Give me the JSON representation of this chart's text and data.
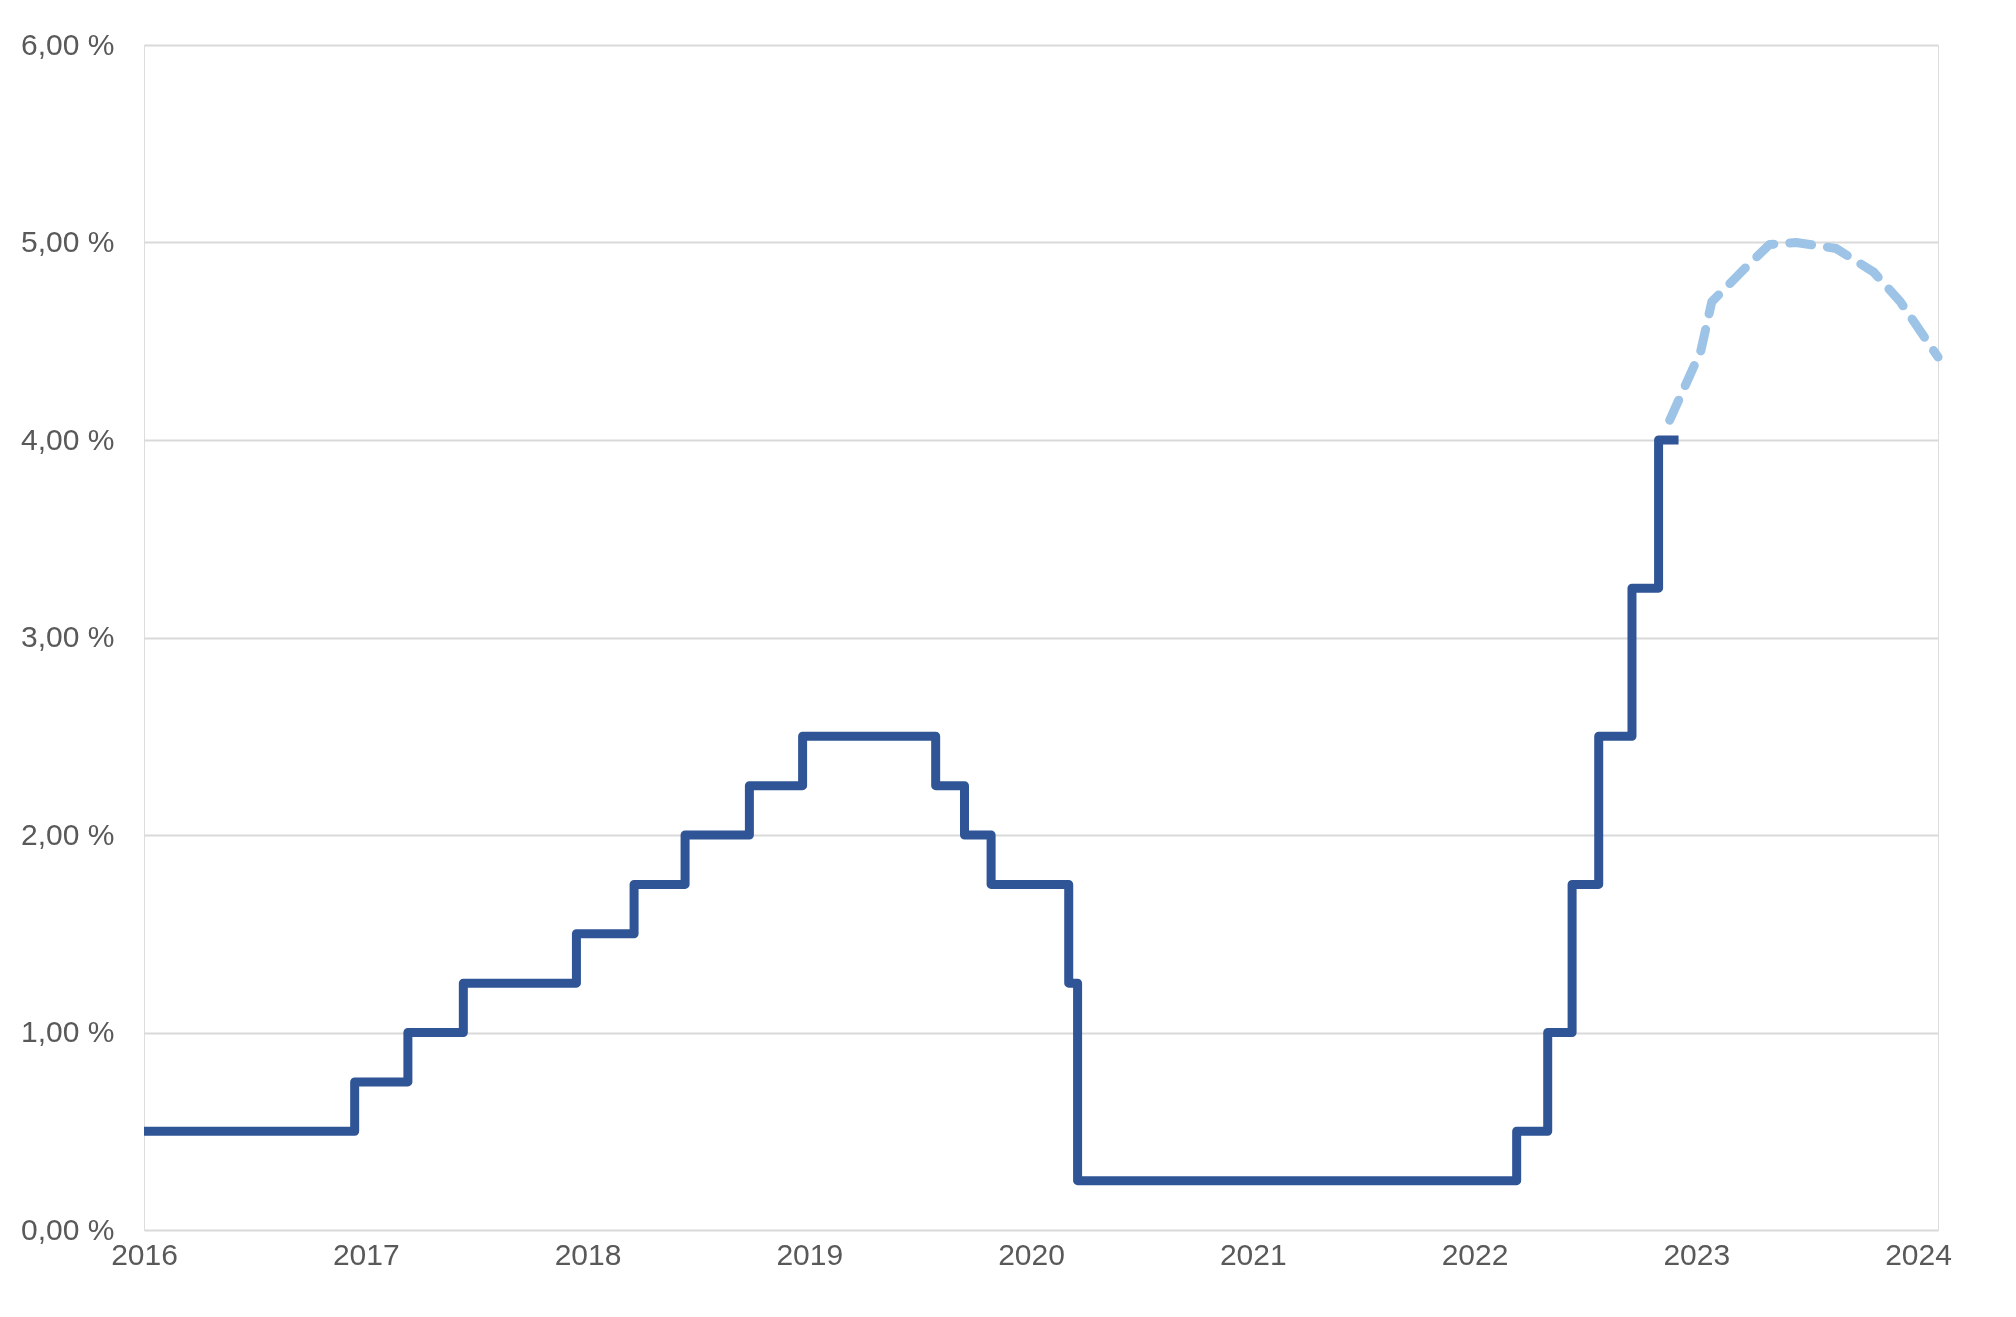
{
  "chart_data": {
    "type": "step",
    "xlim": [
      2016,
      2024.09
    ],
    "xticks": [
      2016,
      2017,
      2018,
      2019,
      2020,
      2021,
      2022,
      2023,
      2024
    ],
    "ylim": [
      0,
      6
    ],
    "yticks": [
      {
        "value": 0,
        "label": "0,00 %"
      },
      {
        "value": 1,
        "label": "1,00 %"
      },
      {
        "value": 2,
        "label": "2,00 %"
      },
      {
        "value": 3,
        "label": "3,00 %"
      },
      {
        "value": 4,
        "label": "4,00 %"
      },
      {
        "value": 5,
        "label": "5,00 %"
      },
      {
        "value": 6,
        "label": "6,00 %"
      }
    ],
    "grid": "y",
    "series": [
      {
        "color": "#2f5597",
        "line_style": "solid",
        "x": [
          2016.0,
          2016.95,
          2017.19,
          2017.44,
          2017.95,
          2018.21,
          2018.44,
          2018.73,
          2018.97,
          2019.57,
          2019.7,
          2019.82,
          2020.17,
          2020.21,
          2022.19,
          2022.33,
          2022.44,
          2022.56,
          2022.71,
          2022.83,
          2022.92
        ],
        "values": [
          0.5,
          0.75,
          1.0,
          1.25,
          1.5,
          1.75,
          2.0,
          2.25,
          2.5,
          2.25,
          2.0,
          1.75,
          1.25,
          0.25,
          0.5,
          1.0,
          1.75,
          2.5,
          3.25,
          4.0,
          4.0
        ]
      },
      {
        "type": "line",
        "color": "#9dc3e6",
        "line_style": "dashed",
        "x": [
          2022.88,
          2023.02,
          2023.07,
          2023.22,
          2023.33,
          2023.45,
          2023.63,
          2023.8,
          2023.92,
          2024.09
        ],
        "values": [
          4.1,
          4.45,
          4.7,
          4.87,
          4.99,
          5.0,
          4.97,
          4.85,
          4.7,
          4.42
        ]
      }
    ]
  }
}
